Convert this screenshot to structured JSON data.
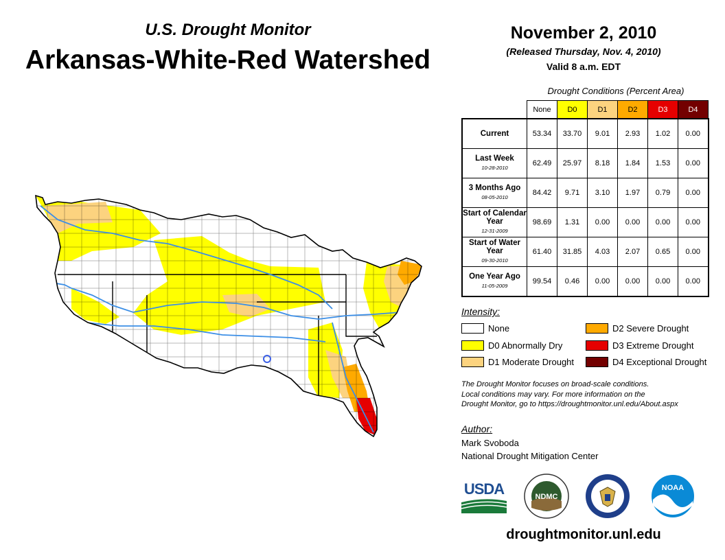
{
  "header": {
    "monitor_title": "U.S. Drought Monitor",
    "region_title": "Arkansas-White-Red Watershed",
    "date": "November 2, 2010",
    "released": "(Released Thursday, Nov. 4, 2010)",
    "valid": "Valid 8 a.m. EDT"
  },
  "table": {
    "caption": "Drought Conditions (Percent Area)",
    "columns": [
      "None",
      "D0",
      "D1",
      "D2",
      "D3",
      "D4"
    ],
    "rows": [
      {
        "label": "Current",
        "sub": "",
        "values": [
          "53.34",
          "33.70",
          "9.01",
          "2.93",
          "1.02",
          "0.00"
        ]
      },
      {
        "label": "Last Week",
        "sub": "10-28-2010",
        "values": [
          "62.49",
          "25.97",
          "8.18",
          "1.84",
          "1.53",
          "0.00"
        ]
      },
      {
        "label": "3 Months Ago",
        "sub": "08-05-2010",
        "values": [
          "84.42",
          "9.71",
          "3.10",
          "1.97",
          "0.79",
          "0.00"
        ]
      },
      {
        "label": "Start of Calendar Year",
        "sub": "12-31-2009",
        "values": [
          "98.69",
          "1.31",
          "0.00",
          "0.00",
          "0.00",
          "0.00"
        ]
      },
      {
        "label": "Start of Water Year",
        "sub": "09-30-2010",
        "values": [
          "61.40",
          "31.85",
          "4.03",
          "2.07",
          "0.65",
          "0.00"
        ]
      },
      {
        "label": "One Year Ago",
        "sub": "11-05-2009",
        "values": [
          "99.54",
          "0.46",
          "0.00",
          "0.00",
          "0.00",
          "0.00"
        ]
      }
    ]
  },
  "legend": {
    "title": "Intensity:",
    "items": [
      {
        "label": "None",
        "color": "#ffffff"
      },
      {
        "label": "D0 Abnormally Dry",
        "color": "#ffff00"
      },
      {
        "label": "D1 Moderate Drought",
        "color": "#fcd37f"
      },
      {
        "label": "D2 Severe Drought",
        "color": "#ffaa00"
      },
      {
        "label": "D3 Extreme Drought",
        "color": "#e60000"
      },
      {
        "label": "D4 Exceptional Drought",
        "color": "#730000"
      }
    ]
  },
  "disclaimer": {
    "line1": "The Drought Monitor focuses on broad-scale conditions.",
    "line2": "Local conditions may vary. For more information on the",
    "line3": "Drought Monitor, go to https://droughtmonitor.unl.edu/About.aspx"
  },
  "author": {
    "title": "Author:",
    "name": "Mark Svoboda",
    "org": "National Drought Mitigation Center"
  },
  "logos": {
    "usda": "USDA",
    "ndmc": "NDMC",
    "noaa": "NOAA"
  },
  "website": "droughtmonitor.unl.edu",
  "colors": {
    "none": "#ffffff",
    "d0": "#ffff00",
    "d1": "#fcd37f",
    "d2": "#ffaa00",
    "d3": "#e60000",
    "d4": "#730000",
    "river": "#3b8ee6",
    "border": "#000000"
  }
}
